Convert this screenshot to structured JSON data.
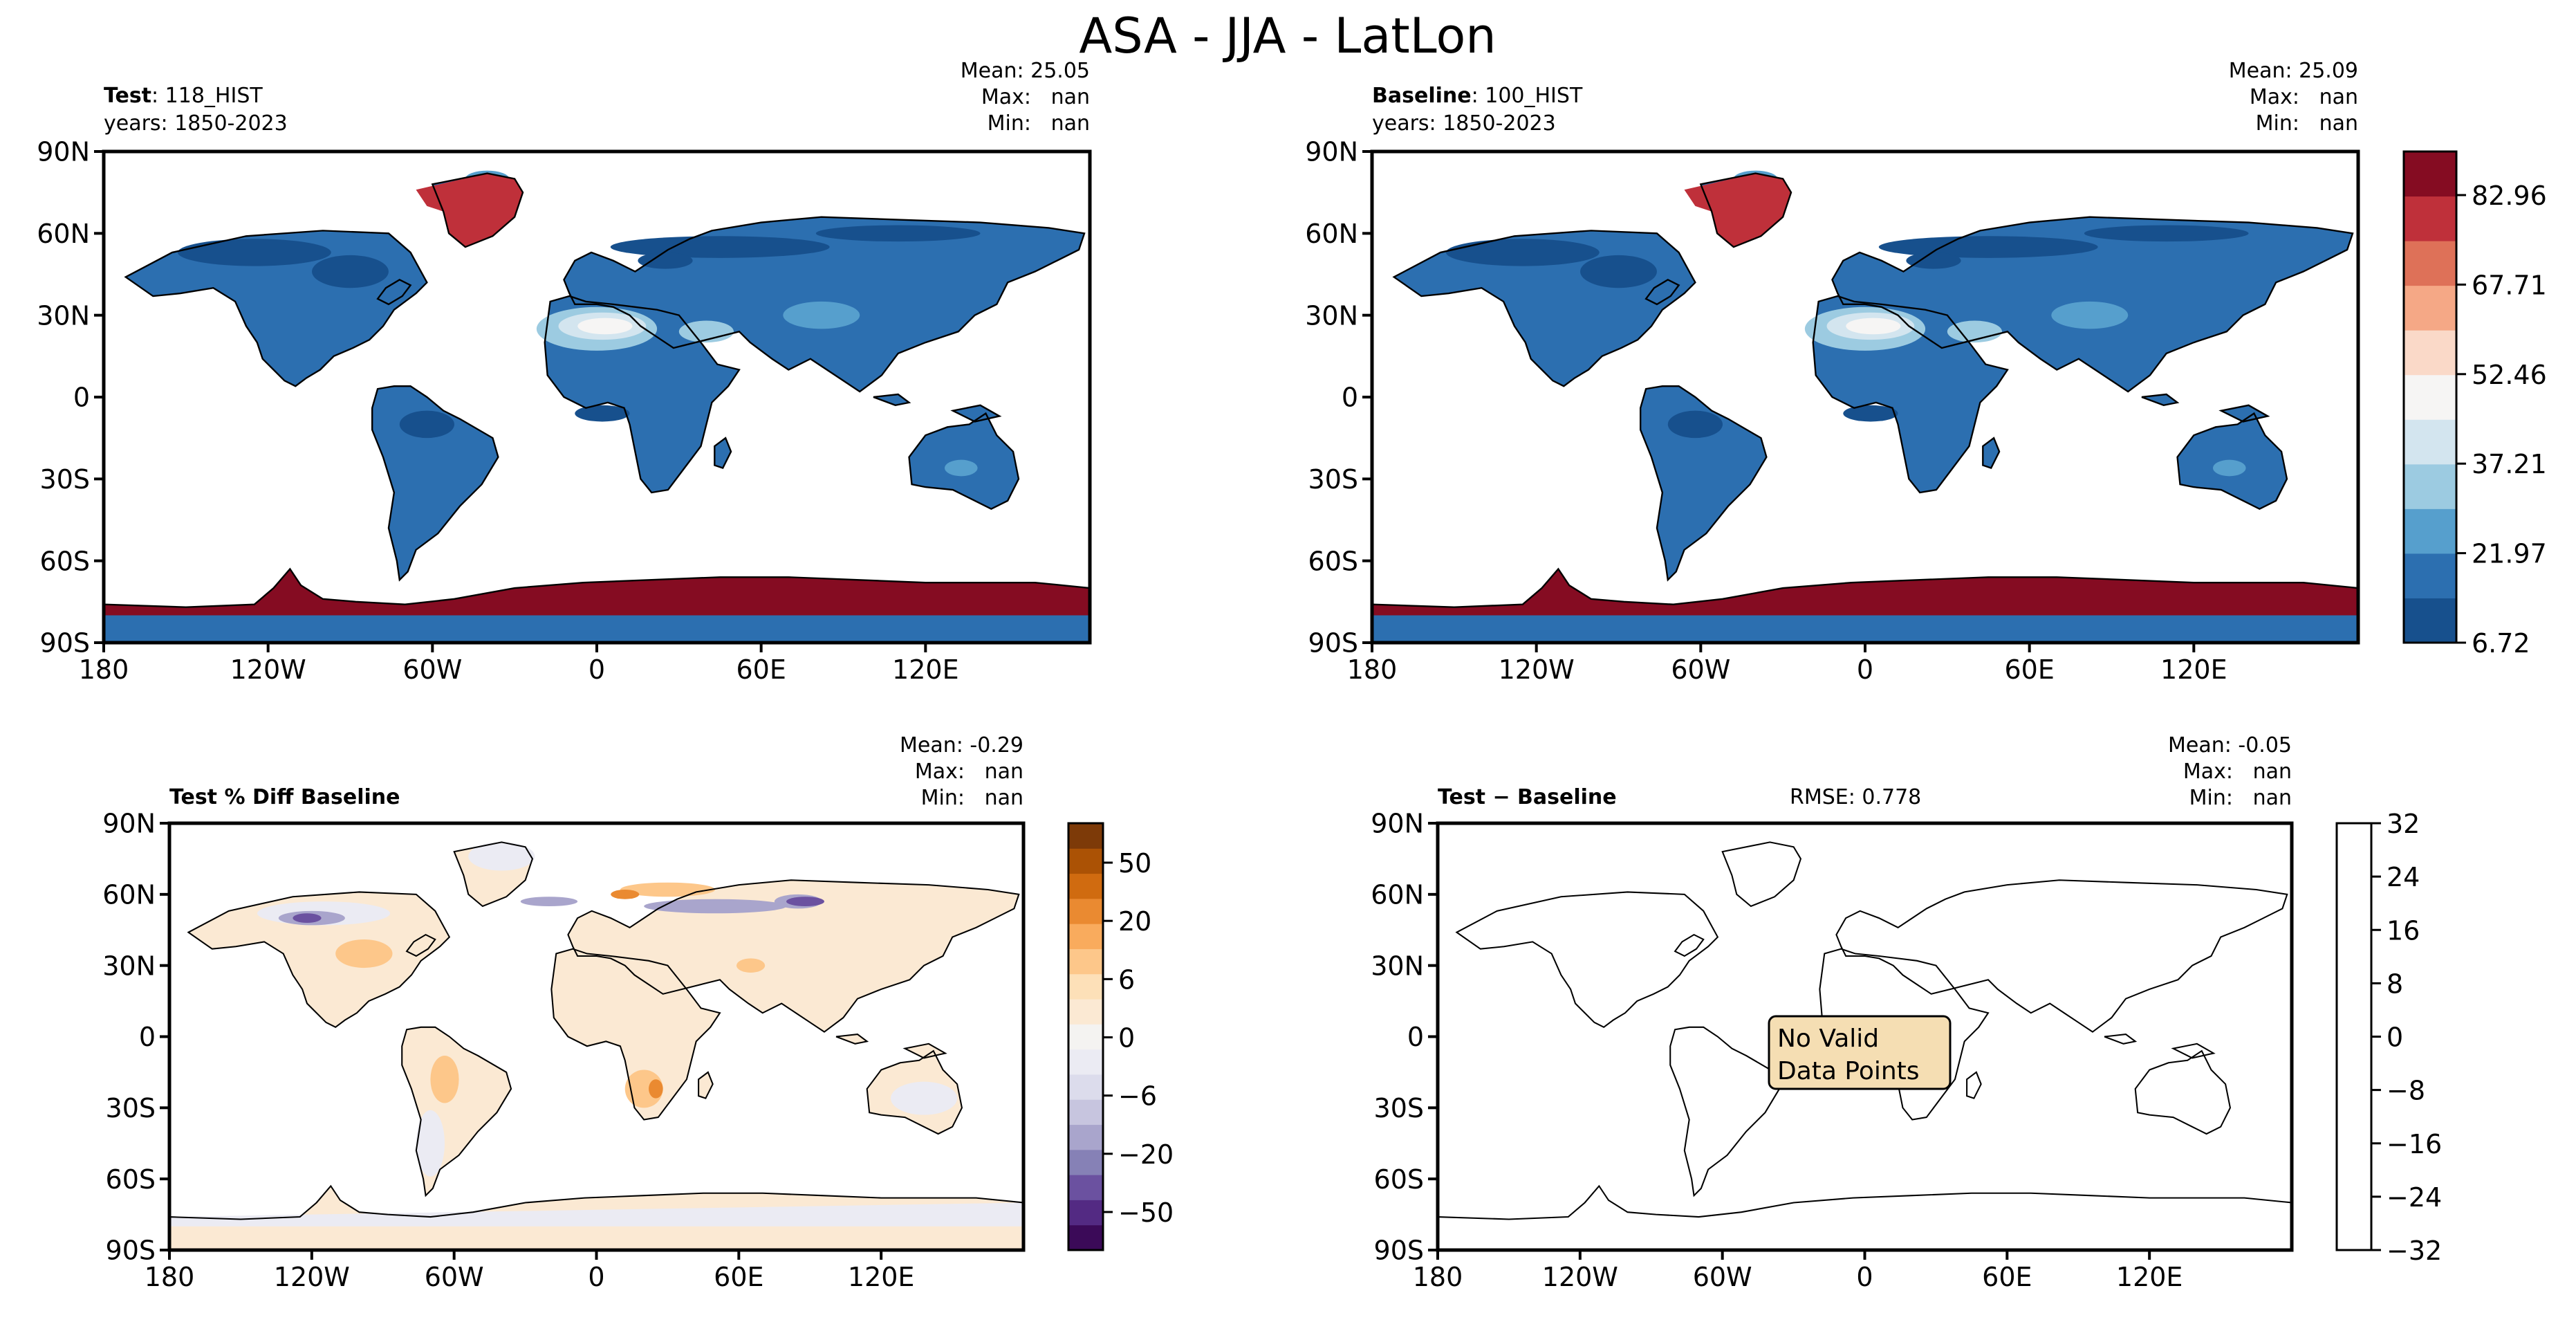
{
  "figure": {
    "title": "ASA - JJA - LatLon"
  },
  "axes_ticks": {
    "lon": [
      "180",
      "120W",
      "60W",
      "0",
      "60E",
      "120E"
    ],
    "lat": [
      "90N",
      "60N",
      "30N",
      "0",
      "30S",
      "60S",
      "90S"
    ]
  },
  "panels": {
    "test": {
      "label_bold": "Test",
      "label_rest": ": 118_HIST",
      "years": "years: 1850-2023",
      "mean": "Mean: 25.05",
      "max": "Max:   nan",
      "min": "Min:   nan"
    },
    "baseline": {
      "label_bold": "Baseline",
      "label_rest": ": 100_HIST",
      "years": "years: 1850-2023",
      "mean": "Mean: 25.09",
      "max": "Max:   nan",
      "min": "Min:   nan"
    },
    "pctdiff": {
      "label_bold": "Test % Diff Baseline",
      "mean": "Mean: -0.29",
      "max": "Max:   nan",
      "min": "Min:   nan"
    },
    "diff": {
      "label_bold": "Test − Baseline",
      "rmse": "RMSE: 0.778",
      "mean": "Mean: -0.05",
      "max": "Max:   nan",
      "min": "Min:   nan",
      "message_line1": "No Valid",
      "message_line2": "Data Points"
    }
  },
  "colorbars": {
    "main": {
      "tick_labels": [
        "82.96",
        "67.71",
        "52.46",
        "37.21",
        "21.97",
        "6.72"
      ],
      "colors": [
        "#17508d",
        "#2c6fb0",
        "#569fcd",
        "#9ccbe1",
        "#d3e5ef",
        "#f6f5f4",
        "#fad9c8",
        "#f5a886",
        "#de7158",
        "#bf303a",
        "#850c22"
      ]
    },
    "pctdiff": {
      "tick_labels": [
        "50",
        "20",
        "6",
        "0",
        "−6",
        "−20",
        "−50"
      ],
      "colors": [
        "#3b0a58",
        "#532a83",
        "#6b51a0",
        "#8681b6",
        "#a9a5cc",
        "#c7c5df",
        "#dcdcec",
        "#ebebf3",
        "#f4f3f1",
        "#fbe9d3",
        "#fde0b8",
        "#fdc78a",
        "#f9ab5d",
        "#ea8a31",
        "#d06b10",
        "#ab5205",
        "#7d3a08"
      ]
    },
    "diff": {
      "tick_labels": [
        "32",
        "24",
        "16",
        "8",
        "0",
        "−8",
        "−16",
        "−24",
        "−32"
      ]
    }
  },
  "chart_data": [
    {
      "type": "heatmap",
      "title": "Test: 118_HIST",
      "subtitle": "years: 1850-2023",
      "xlabel": "",
      "ylabel": "",
      "x_ticks": [
        "180",
        "120W",
        "60W",
        "0",
        "60E",
        "120E"
      ],
      "y_ticks": [
        "90N",
        "60N",
        "30N",
        "0",
        "30S",
        "60S",
        "90S"
      ],
      "xlim": [
        -180,
        180
      ],
      "ylim": [
        -90,
        90
      ],
      "stats": {
        "mean": 25.05,
        "max": "nan",
        "min": "nan"
      },
      "colorbar_ticks": [
        6.72,
        21.97,
        37.21,
        52.46,
        67.71,
        82.96
      ],
      "colorbar_range": [
        6.72,
        90.6
      ],
      "regions": [
        {
          "name": "Greenland",
          "approx_value": 79
        },
        {
          "name": "Antarctica",
          "approx_value": 88
        },
        {
          "name": "Sahara",
          "approx_value": 45
        },
        {
          "name": "Most land",
          "approx_value": 18
        }
      ]
    },
    {
      "type": "heatmap",
      "title": "Baseline: 100_HIST",
      "subtitle": "years: 1850-2023",
      "xlabel": "",
      "ylabel": "",
      "x_ticks": [
        "180",
        "120W",
        "60W",
        "0",
        "60E",
        "120E"
      ],
      "y_ticks": [
        "90N",
        "60N",
        "30N",
        "0",
        "30S",
        "60S",
        "90S"
      ],
      "xlim": [
        -180,
        180
      ],
      "ylim": [
        -90,
        90
      ],
      "stats": {
        "mean": 25.09,
        "max": "nan",
        "min": "nan"
      },
      "colorbar_ticks": [
        6.72,
        21.97,
        37.21,
        52.46,
        67.71,
        82.96
      ],
      "regions": [
        {
          "name": "Greenland",
          "approx_value": 79
        },
        {
          "name": "Antarctica",
          "approx_value": 88
        },
        {
          "name": "Sahara",
          "approx_value": 45
        },
        {
          "name": "Most land",
          "approx_value": 18
        }
      ]
    },
    {
      "type": "heatmap",
      "title": "Test % Diff Baseline",
      "xlabel": "",
      "ylabel": "",
      "x_ticks": [
        "180",
        "120W",
        "60W",
        "0",
        "60E",
        "120E"
      ],
      "y_ticks": [
        "90N",
        "60N",
        "30N",
        "0",
        "30S",
        "60S",
        "90S"
      ],
      "xlim": [
        -180,
        180
      ],
      "ylim": [
        -90,
        90
      ],
      "stats": {
        "mean": -0.29,
        "max": "nan",
        "min": "nan"
      },
      "colorbar_ticks": [
        -50,
        -20,
        -6,
        0,
        6,
        20,
        50
      ]
    },
    {
      "type": "heatmap",
      "title": "Test − Baseline",
      "xlabel": "",
      "ylabel": "",
      "x_ticks": [
        "180",
        "120W",
        "60W",
        "0",
        "60E",
        "120E"
      ],
      "y_ticks": [
        "90N",
        "60N",
        "30N",
        "0",
        "30S",
        "60S",
        "90S"
      ],
      "xlim": [
        -180,
        180
      ],
      "ylim": [
        -90,
        90
      ],
      "stats": {
        "mean": -0.05,
        "max": "nan",
        "min": "nan",
        "rmse": 0.778
      },
      "colorbar_ticks": [
        -32,
        -24,
        -16,
        -8,
        0,
        8,
        16,
        24,
        32
      ],
      "annotation": "No Valid Data Points"
    }
  ]
}
